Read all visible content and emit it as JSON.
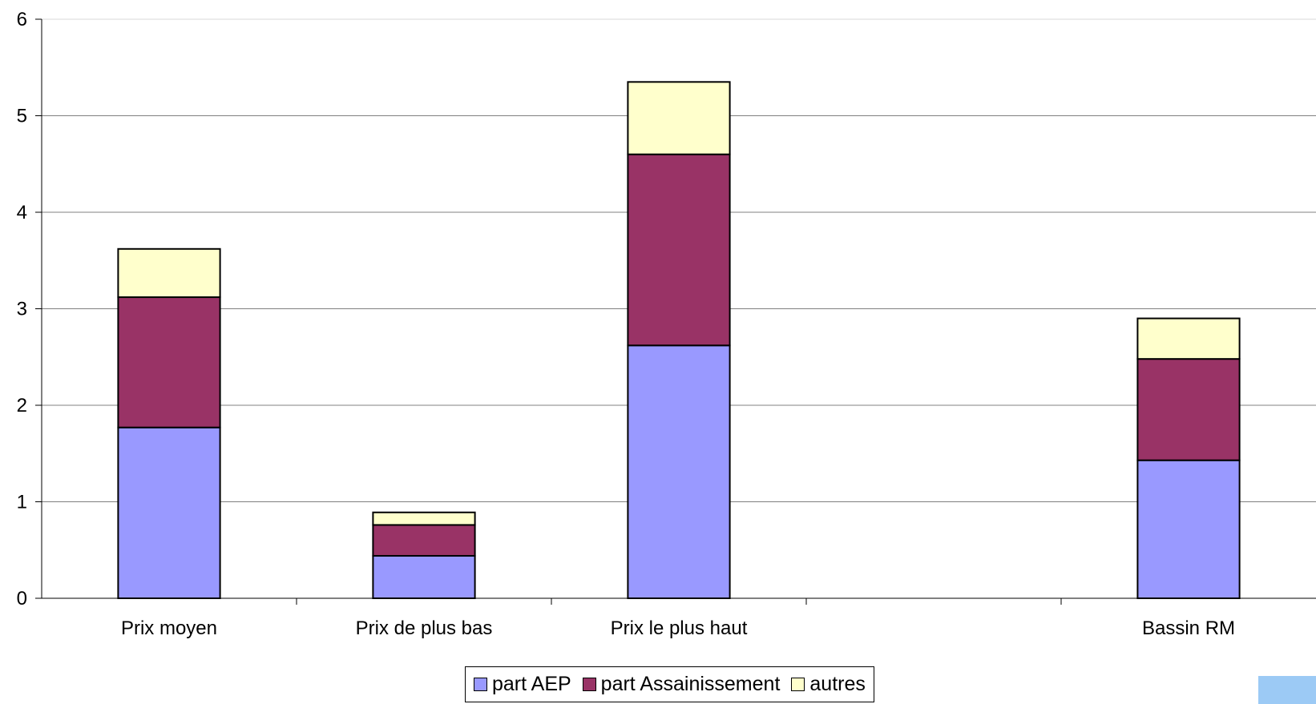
{
  "chart_data": {
    "type": "bar",
    "stacked": true,
    "categories": [
      "Prix moyen",
      "Prix de plus bas",
      "Prix le plus haut",
      "",
      "Bassin RM"
    ],
    "series": [
      {
        "name": "part AEP",
        "color": "#9999ff",
        "values": [
          1.77,
          0.44,
          2.62,
          null,
          1.43
        ]
      },
      {
        "name": "part Assainissement",
        "color": "#993366",
        "values": [
          1.35,
          0.32,
          1.98,
          null,
          1.05
        ]
      },
      {
        "name": "autres",
        "color": "#ffffcc",
        "values": [
          0.5,
          0.13,
          0.75,
          null,
          0.42
        ]
      }
    ],
    "ylim": [
      0,
      6
    ],
    "yticks": [
      "0",
      "1",
      "2",
      "3",
      "4",
      "5",
      "6"
    ],
    "grid": true,
    "legend_position": "bottom"
  }
}
